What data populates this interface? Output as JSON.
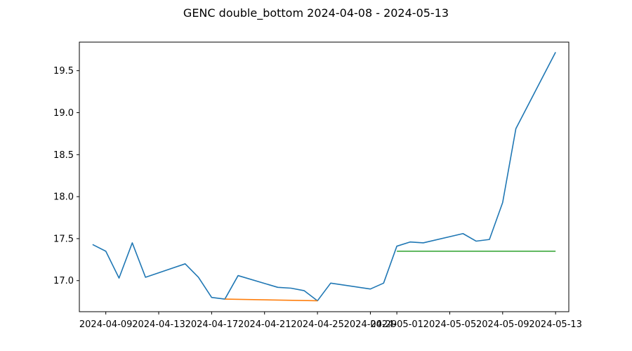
{
  "chart_data": {
    "type": "line",
    "title": "GENC double_bottom 2024-04-08 - 2024-05-13",
    "xlabel": "",
    "ylabel": "",
    "x_ticks": [
      "2024-04-09",
      "2024-04-13",
      "2024-04-17",
      "2024-04-21",
      "2024-04-25",
      "2024-04-29",
      "2024-05-01",
      "2024-05-05",
      "2024-05-09",
      "2024-05-13"
    ],
    "y_ticks": [
      "17.0",
      "17.5",
      "18.0",
      "18.5",
      "19.0",
      "19.5"
    ],
    "xlim": [
      "2024-04-07",
      "2024-05-14"
    ],
    "ylim": [
      16.63,
      19.84
    ],
    "grid": false,
    "series": [
      {
        "color": "#1f77b4",
        "points": [
          [
            "2024-04-08",
            17.43
          ],
          [
            "2024-04-09",
            17.35
          ],
          [
            "2024-04-10",
            17.03
          ],
          [
            "2024-04-11",
            17.45
          ],
          [
            "2024-04-12",
            17.04
          ],
          [
            "2024-04-15",
            17.2
          ],
          [
            "2024-04-16",
            17.04
          ],
          [
            "2024-04-17",
            16.8
          ],
          [
            "2024-04-18",
            16.78
          ],
          [
            "2024-04-19",
            17.06
          ],
          [
            "2024-04-22",
            16.92
          ],
          [
            "2024-04-23",
            16.91
          ],
          [
            "2024-04-24",
            16.88
          ],
          [
            "2024-04-25",
            16.76
          ],
          [
            "2024-04-26",
            16.97
          ],
          [
            "2024-04-29",
            16.9
          ],
          [
            "2024-04-30",
            16.97
          ],
          [
            "2024-05-01",
            17.41
          ],
          [
            "2024-05-02",
            17.46
          ],
          [
            "2024-05-03",
            17.45
          ],
          [
            "2024-05-06",
            17.56
          ],
          [
            "2024-05-07",
            17.47
          ],
          [
            "2024-05-08",
            17.49
          ],
          [
            "2024-05-09",
            17.93
          ],
          [
            "2024-05-10",
            18.81
          ],
          [
            "2024-05-13",
            19.72
          ]
        ]
      },
      {
        "color": "#ff7f0e",
        "points": [
          [
            "2024-04-18",
            16.78
          ],
          [
            "2024-04-25",
            16.76
          ]
        ]
      },
      {
        "color": "#2ca02c",
        "points": [
          [
            "2024-05-01",
            17.35
          ],
          [
            "2024-05-13",
            17.35
          ]
        ]
      }
    ]
  }
}
